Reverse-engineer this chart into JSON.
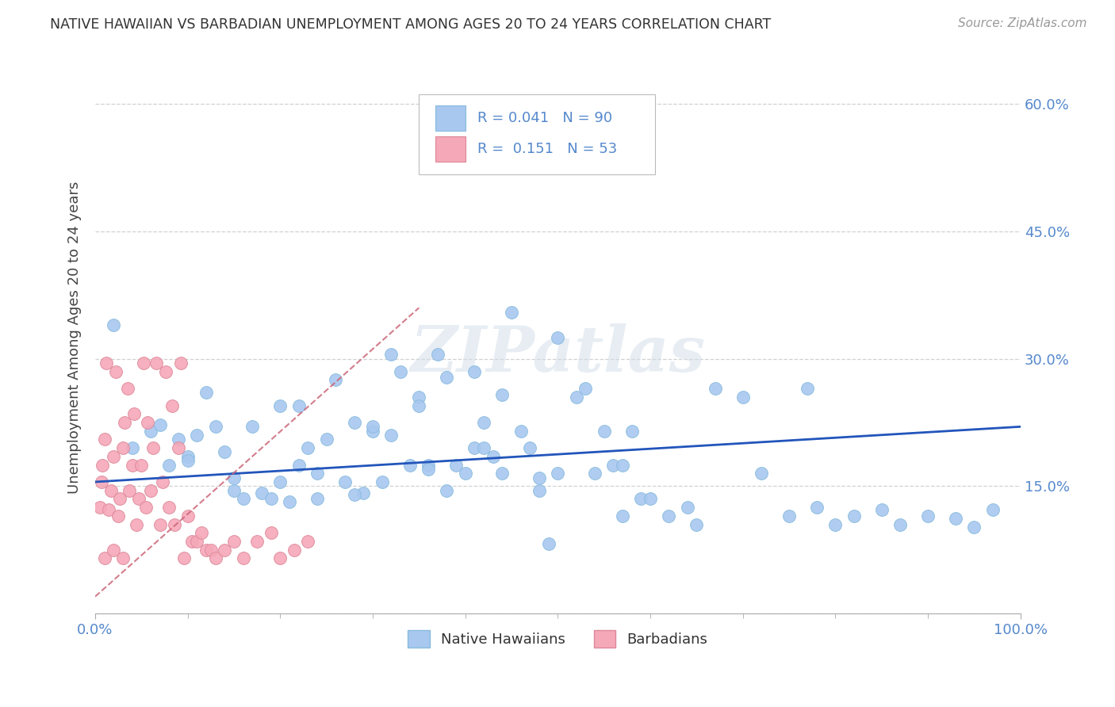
{
  "title": "NATIVE HAWAIIAN VS BARBADIAN UNEMPLOYMENT AMONG AGES 20 TO 24 YEARS CORRELATION CHART",
  "source": "Source: ZipAtlas.com",
  "ylabel": "Unemployment Among Ages 20 to 24 years",
  "xlim": [
    0.0,
    1.0
  ],
  "ylim": [
    0.0,
    0.65
  ],
  "x_ticks": [
    0.0,
    1.0
  ],
  "x_tick_labels": [
    "0.0%",
    "100.0%"
  ],
  "y_ticks": [
    0.0,
    0.15,
    0.3,
    0.45,
    0.6
  ],
  "y_tick_labels": [
    "",
    "15.0%",
    "30.0%",
    "45.0%",
    "60.0%"
  ],
  "grid_color": "#cccccc",
  "background_color": "#ffffff",
  "watermark_text": "ZIPatlas",
  "nh_color": "#a8c8f0",
  "nh_edge_color": "#7aaard4",
  "barb_color": "#f5a8b8",
  "barb_edge_color": "#e07090",
  "nh_R": 0.041,
  "nh_N": 90,
  "barb_R": 0.151,
  "barb_N": 53,
  "tick_label_color": "#5588cc",
  "ylabel_color": "#444444",
  "line_nh_color": "#2255bb",
  "line_barb_color": "#cc6677",
  "nh_scatter_x": [
    0.02,
    0.04,
    0.06,
    0.07,
    0.08,
    0.09,
    0.1,
    0.11,
    0.12,
    0.13,
    0.14,
    0.15,
    0.16,
    0.17,
    0.18,
    0.19,
    0.2,
    0.21,
    0.22,
    0.23,
    0.24,
    0.25,
    0.26,
    0.27,
    0.28,
    0.29,
    0.3,
    0.31,
    0.32,
    0.33,
    0.34,
    0.35,
    0.36,
    0.37,
    0.38,
    0.39,
    0.4,
    0.41,
    0.42,
    0.43,
    0.44,
    0.45,
    0.46,
    0.47,
    0.48,
    0.49,
    0.5,
    0.52,
    0.54,
    0.55,
    0.56,
    0.57,
    0.58,
    0.59,
    0.6,
    0.62,
    0.64,
    0.65,
    0.67,
    0.7,
    0.72,
    0.75,
    0.77,
    0.78,
    0.8,
    0.82,
    0.85,
    0.87,
    0.9,
    0.93,
    0.95,
    0.97,
    0.22,
    0.24,
    0.35,
    0.38,
    0.41,
    0.44,
    0.5,
    0.53,
    0.57,
    0.2,
    0.3,
    0.36,
    0.1,
    0.15,
    0.28,
    0.32,
    0.42,
    0.48
  ],
  "nh_scatter_y": [
    0.34,
    0.195,
    0.215,
    0.222,
    0.175,
    0.205,
    0.185,
    0.21,
    0.26,
    0.22,
    0.19,
    0.145,
    0.135,
    0.22,
    0.142,
    0.135,
    0.245,
    0.132,
    0.175,
    0.195,
    0.135,
    0.205,
    0.275,
    0.155,
    0.225,
    0.142,
    0.215,
    0.155,
    0.305,
    0.285,
    0.175,
    0.255,
    0.175,
    0.305,
    0.278,
    0.175,
    0.165,
    0.195,
    0.225,
    0.185,
    0.165,
    0.355,
    0.215,
    0.195,
    0.145,
    0.082,
    0.165,
    0.255,
    0.165,
    0.215,
    0.175,
    0.115,
    0.215,
    0.135,
    0.135,
    0.115,
    0.125,
    0.105,
    0.265,
    0.255,
    0.165,
    0.115,
    0.265,
    0.125,
    0.105,
    0.115,
    0.122,
    0.105,
    0.115,
    0.112,
    0.102,
    0.122,
    0.245,
    0.165,
    0.245,
    0.145,
    0.285,
    0.258,
    0.325,
    0.265,
    0.175,
    0.155,
    0.22,
    0.17,
    0.18,
    0.16,
    0.14,
    0.21,
    0.195,
    0.16
  ],
  "barb_scatter_x": [
    0.005,
    0.007,
    0.008,
    0.01,
    0.012,
    0.015,
    0.017,
    0.02,
    0.022,
    0.025,
    0.027,
    0.03,
    0.032,
    0.035,
    0.037,
    0.04,
    0.042,
    0.045,
    0.047,
    0.05,
    0.052,
    0.055,
    0.057,
    0.06,
    0.063,
    0.066,
    0.07,
    0.073,
    0.076,
    0.08,
    0.083,
    0.086,
    0.09,
    0.093,
    0.096,
    0.1,
    0.105,
    0.11,
    0.115,
    0.12,
    0.125,
    0.13,
    0.14,
    0.15,
    0.16,
    0.175,
    0.19,
    0.2,
    0.215,
    0.23,
    0.01,
    0.02,
    0.03
  ],
  "barb_scatter_y": [
    0.125,
    0.155,
    0.175,
    0.205,
    0.295,
    0.122,
    0.145,
    0.185,
    0.285,
    0.115,
    0.135,
    0.195,
    0.225,
    0.265,
    0.145,
    0.175,
    0.235,
    0.105,
    0.135,
    0.175,
    0.295,
    0.125,
    0.225,
    0.145,
    0.195,
    0.295,
    0.105,
    0.155,
    0.285,
    0.125,
    0.245,
    0.105,
    0.195,
    0.295,
    0.065,
    0.115,
    0.085,
    0.085,
    0.095,
    0.075,
    0.075,
    0.065,
    0.075,
    0.085,
    0.065,
    0.085,
    0.095,
    0.065,
    0.075,
    0.085,
    0.065,
    0.075,
    0.065
  ],
  "barb_trend_x0": 0.0,
  "barb_trend_x1": 0.35,
  "nh_trend_x0": 0.0,
  "nh_trend_x1": 1.0
}
